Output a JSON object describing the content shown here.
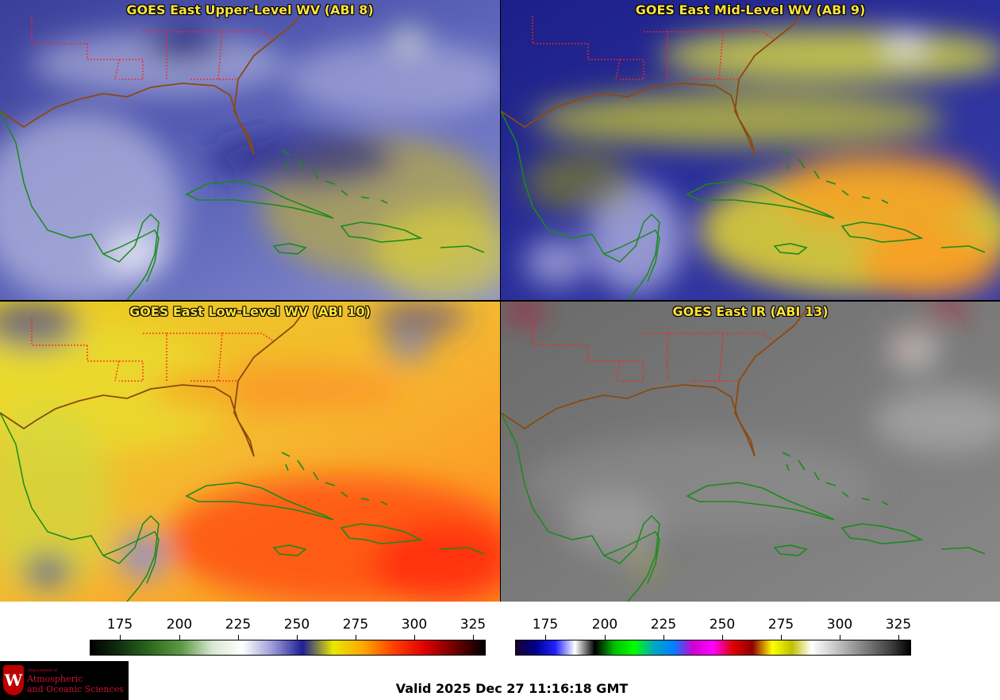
{
  "panels": [
    {
      "id": "p1",
      "title": "GOES East Upper-Level WV (ABI 8)",
      "style": "wv8"
    },
    {
      "id": "p2",
      "title": "GOES East Mid-Level WV (ABI 9)",
      "style": "wv9"
    },
    {
      "id": "p3",
      "title": "GOES East Low-Level WV (ABI 10)",
      "style": "wv10"
    },
    {
      "id": "p4",
      "title": "GOES East IR (ABI 13)",
      "style": "ir"
    }
  ],
  "colorbars": {
    "wv": {
      "ticks": [
        "175",
        "200",
        "225",
        "250",
        "275",
        "300",
        "325"
      ],
      "colors": [
        "#000000",
        "#113311",
        "#2e6b1f",
        "#5e9a45",
        "#d8e6d0",
        "#ffffff",
        "#9a9ad8",
        "#1e1e96",
        "#e8e800",
        "#ffa500",
        "#ff4000",
        "#e00000",
        "#700000",
        "#000000"
      ]
    },
    "ir": {
      "ticks": [
        "175",
        "200",
        "225",
        "250",
        "275",
        "300",
        "325"
      ],
      "colors": [
        "#1a0030",
        "#00008c",
        "#2020ff",
        "#ffffff",
        "#000000",
        "#00c000",
        "#00ff00",
        "#00a8c0",
        "#0080ff",
        "#d000d0",
        "#ff00ff",
        "#e00000",
        "#900000",
        "#ffff00",
        "#c0c000",
        "#ffffff",
        "#d0d0d0",
        "#a0a0a0",
        "#707070",
        "#404040",
        "#000000"
      ]
    }
  },
  "valid_time": "Valid 2025 Dec 27 11:16:18 GMT",
  "logo": {
    "dept": "Department of",
    "line1": "Atmospheric",
    "line2": "and Oceanic Sciences",
    "crest_letter": "W"
  }
}
